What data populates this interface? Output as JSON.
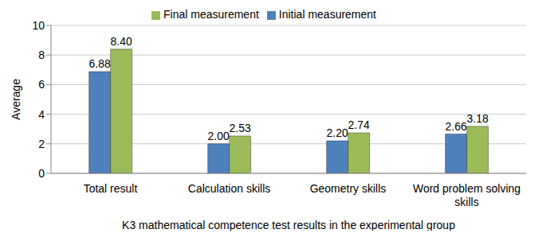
{
  "chart_data": {
    "type": "bar",
    "xlabel": "K3 mathematical competence test results in the experimental group",
    "ylabel": "Average",
    "categories": [
      "Total result",
      "Calculation skills",
      "Geometry skills",
      "Word problem solving skills"
    ],
    "series": [
      {
        "name": "Initial measurement",
        "color": "#4f81bd",
        "values": [
          6.88,
          2.0,
          2.2,
          2.66
        ],
        "value_labels": [
          "6.88",
          "2.00",
          "2.20",
          "2.66"
        ]
      },
      {
        "name": "Final measurement",
        "color": "#9bbb59",
        "values": [
          8.4,
          2.53,
          2.74,
          3.18
        ],
        "value_labels": [
          "8.40",
          "2.53",
          "2.74",
          "3.18"
        ]
      }
    ],
    "ylim": [
      0,
      10
    ],
    "yticks": [
      0,
      2,
      4,
      6,
      8,
      10
    ],
    "grid": true,
    "legend": "top",
    "data_labels": true
  }
}
